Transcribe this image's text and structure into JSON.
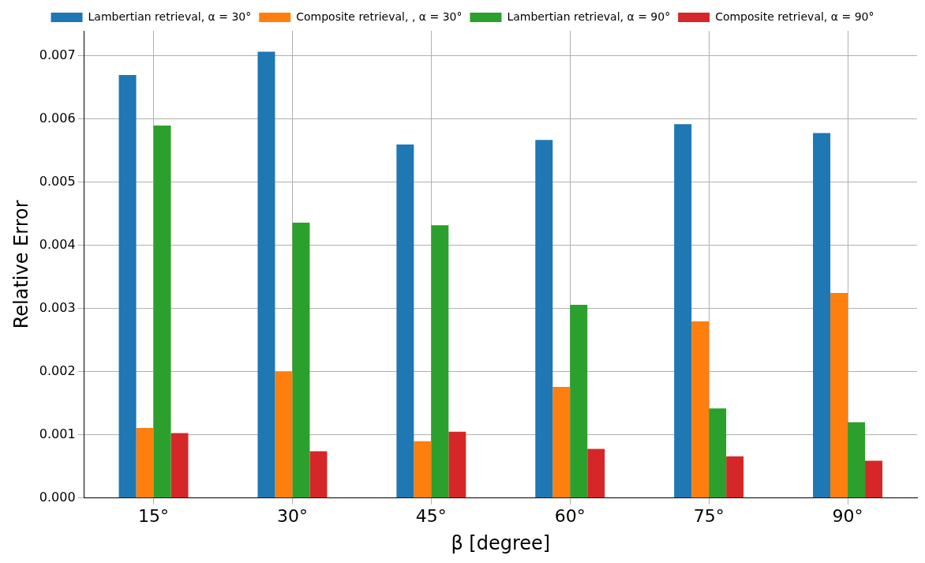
{
  "chart_data": {
    "type": "bar",
    "xlabel": "β [degree]",
    "ylabel": "Relative Error",
    "categories": [
      "15°",
      "30°",
      "45°",
      "60°",
      "75°",
      "90°"
    ],
    "series": [
      {
        "name": "Lambertian retrieval, α = 30°",
        "color": "#1f77b4",
        "values": [
          0.0067,
          0.00707,
          0.0056,
          0.00567,
          0.00592,
          0.00578
        ]
      },
      {
        "name": "Composite retrieval, , α = 30°",
        "color": "#ff7f0e",
        "values": [
          0.00111,
          0.002,
          0.0009,
          0.00176,
          0.0028,
          0.00325
        ]
      },
      {
        "name": "Lambertian retrieval, α = 90°",
        "color": "#2ca02c",
        "values": [
          0.0059,
          0.00436,
          0.00432,
          0.00306,
          0.00142,
          0.0012
        ]
      },
      {
        "name": "Composite retrieval, α = 90°",
        "color": "#d62728",
        "values": [
          0.00103,
          0.00074,
          0.00105,
          0.00078,
          0.00066,
          0.00059
        ]
      }
    ],
    "ylim": [
      0,
      0.0074
    ],
    "yticks": [
      {
        "value": 0,
        "label": "0.000"
      },
      {
        "value": 0.001,
        "label": "0.001"
      },
      {
        "value": 0.002,
        "label": "0.002"
      },
      {
        "value": 0.003,
        "label": "0.003"
      },
      {
        "value": 0.004,
        "label": "0.004"
      },
      {
        "value": 0.005,
        "label": "0.005"
      },
      {
        "value": 0.006,
        "label": "0.006"
      },
      {
        "value": 0.007,
        "label": "0.007"
      }
    ],
    "grid": true,
    "legend": "top"
  }
}
